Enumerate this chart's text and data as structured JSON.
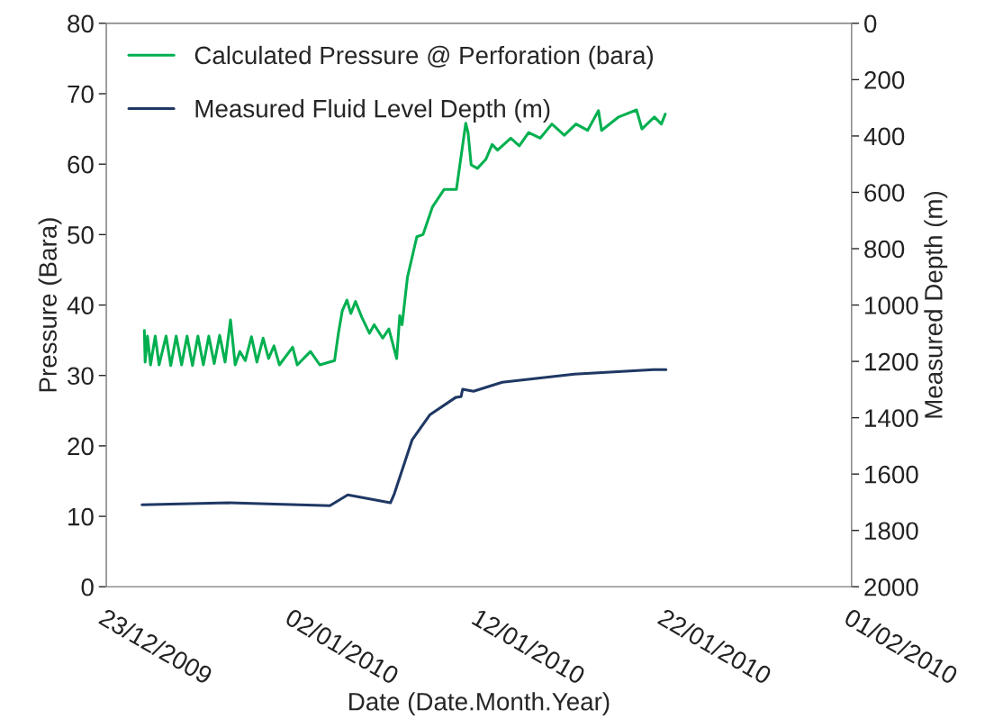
{
  "chart_data": {
    "type": "line",
    "xlabel": "Date (Date.Month.Year)",
    "ylabel": "Pressure (Bara)",
    "y2label": "Measured Depth (m)",
    "xlim": [
      "2009-12-23",
      "2010-02-01"
    ],
    "xticks": [
      {
        "value": "2009-12-23",
        "label": "23/12/2009"
      },
      {
        "value": "2010-01-02",
        "label": "02/01/2010"
      },
      {
        "value": "2010-01-12",
        "label": "12/01/2010"
      },
      {
        "value": "2010-01-22",
        "label": "22/01/2010"
      },
      {
        "value": "2010-02-01",
        "label": "01/02/2010"
      }
    ],
    "ylim": [
      0,
      80
    ],
    "yticks": [
      0,
      10,
      20,
      30,
      40,
      50,
      60,
      70,
      80
    ],
    "y2lim": [
      2000,
      0
    ],
    "y2ticks": [
      0,
      200,
      400,
      600,
      800,
      1000,
      1200,
      1400,
      1600,
      1800,
      2000
    ],
    "grid": false,
    "legend": "top left",
    "marker": "none",
    "line_style": "solid",
    "series": [
      {
        "name": "Calculated Pressure @ Perforation (bara)",
        "color": "#00b050",
        "x": [
          "2009-12-25T01:00",
          "2009-12-25T02:00",
          "2009-12-25T05:00",
          "2009-12-25T09:00",
          "2009-12-25T15:00",
          "2009-12-25T20:00",
          "2009-12-26T05:00",
          "2009-12-26T11:00",
          "2009-12-26T18:00",
          "2009-12-27T01:00",
          "2009-12-27T08:00",
          "2009-12-27T15:00",
          "2009-12-27T22:00",
          "2009-12-28T05:00",
          "2009-12-28T12:00",
          "2009-12-28T19:00",
          "2009-12-29T02:00",
          "2009-12-29T09:00",
          "2009-12-29T16:00",
          "2009-12-29T22:00",
          "2009-12-30T04:00",
          "2009-12-30T11:00",
          "2009-12-30T19:00",
          "2009-12-31T02:00",
          "2009-12-31T10:00",
          "2009-12-31T17:00",
          "2010-01-01T00:00",
          "2010-01-01T07:00",
          "2010-01-02T00:00",
          "2010-01-02T06:00",
          "2010-01-02T23:00",
          "2010-01-03T11:00",
          "2010-01-04T06:00",
          "2010-01-04T11:00",
          "2010-01-04T16:00",
          "2010-01-04T22:00",
          "2010-01-05T03:00",
          "2010-01-05T09:00",
          "2010-01-05T17:00",
          "2010-01-06T03:00",
          "2010-01-06T09:00",
          "2010-01-06T20:00",
          "2010-01-07T04:00",
          "2010-01-07T14:00",
          "2010-01-07T18:00",
          "2010-01-07T21:00",
          "2010-01-08T04:00",
          "2010-01-08T16:00",
          "2010-01-09T00:00",
          "2010-01-09T12:00",
          "2010-01-10T03:00",
          "2010-01-10T19:00",
          "2010-01-11T07:00",
          "2010-01-11T10:00",
          "2010-01-11T14:00",
          "2010-01-11T22:00",
          "2010-01-12T09:00",
          "2010-01-12T17:00",
          "2010-01-13T00:00",
          "2010-01-13T17:00",
          "2010-01-14T04:00",
          "2010-01-14T16:00",
          "2010-01-15T07:00",
          "2010-01-15T22:00",
          "2010-01-16T14:00",
          "2010-01-17T05:00",
          "2010-01-17T20:00",
          "2010-01-18T10:00",
          "2010-01-18T14:00",
          "2010-01-19T12:00",
          "2010-01-20T11:00",
          "2010-01-20T18:00",
          "2010-01-21T10:00",
          "2010-01-21T19:00",
          "2010-01-22T00:00"
        ],
        "values": [
          36.4,
          31.9,
          35.6,
          31.5,
          35.6,
          31.5,
          35.6,
          31.4,
          35.6,
          31.5,
          35.6,
          31.4,
          35.6,
          31.5,
          35.6,
          31.7,
          35.7,
          31.9,
          37.9,
          31.5,
          33.4,
          32.1,
          35.5,
          31.9,
          35.3,
          32.4,
          34.2,
          31.5,
          34.0,
          31.5,
          33.4,
          31.5,
          32.1,
          36.0,
          39.2,
          40.7,
          38.8,
          40.5,
          38.3,
          36.0,
          37.2,
          35.3,
          36.6,
          32.4,
          38.5,
          37.2,
          44.0,
          49.7,
          50.0,
          53.9,
          56.4,
          56.4,
          65.8,
          64.5,
          59.9,
          59.4,
          60.7,
          62.8,
          62.0,
          63.7,
          62.6,
          64.5,
          63.7,
          65.7,
          64.1,
          65.7,
          64.8,
          67.6,
          64.8,
          66.7,
          67.7,
          65.0,
          66.7,
          65.7,
          67.1
        ]
      },
      {
        "name": "Measured Fluid Level Depth (m)",
        "color": "#1f3864",
        "axis": "y2",
        "x": [
          "2009-12-24T22:00",
          "2009-12-29T14:00",
          "2010-01-04T00:00",
          "2010-01-04T23:00",
          "2010-01-07T06:00",
          "2010-01-07T11:00",
          "2010-01-08T10:00",
          "2010-01-09T09:00",
          "2010-01-10T18:00",
          "2010-01-11T01:00",
          "2010-01-11T03:00",
          "2010-01-11T17:00",
          "2010-01-13T06:00",
          "2010-01-17T03:00",
          "2010-01-21T09:00",
          "2010-01-22T01:00"
        ],
        "values": [
          1709,
          1702,
          1712,
          1674,
          1702,
          1670,
          1478,
          1389,
          1328,
          1325,
          1299,
          1306,
          1274,
          1245,
          1229,
          1229
        ]
      }
    ]
  }
}
